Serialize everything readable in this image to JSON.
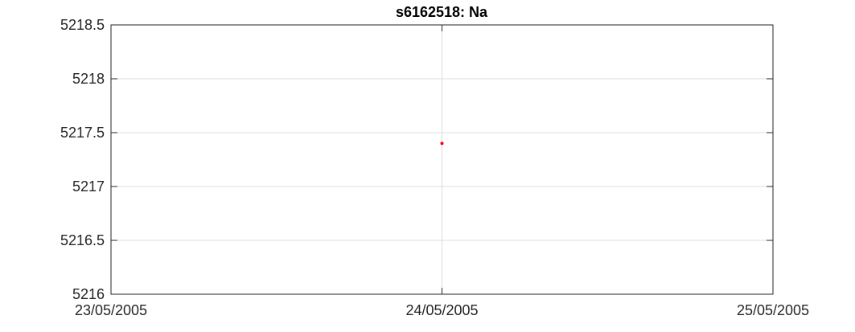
{
  "chart_data": {
    "type": "scatter",
    "title": "s6162518: Na",
    "xlabel": "",
    "ylabel": "",
    "x_ticks": [
      "23/05/2005",
      "24/05/2005",
      "25/05/2005"
    ],
    "xlim": [
      "23/05/2005",
      "25/05/2005"
    ],
    "y_ticks": [
      "5216",
      "5216.5",
      "5217",
      "5217.5",
      "5218",
      "5218.5"
    ],
    "ylim": [
      5216,
      5218.5
    ],
    "grid": true,
    "series": [
      {
        "color": "#ff0000",
        "points": [
          {
            "x": "24/05/2005",
            "y": 5217.4
          }
        ]
      }
    ]
  }
}
